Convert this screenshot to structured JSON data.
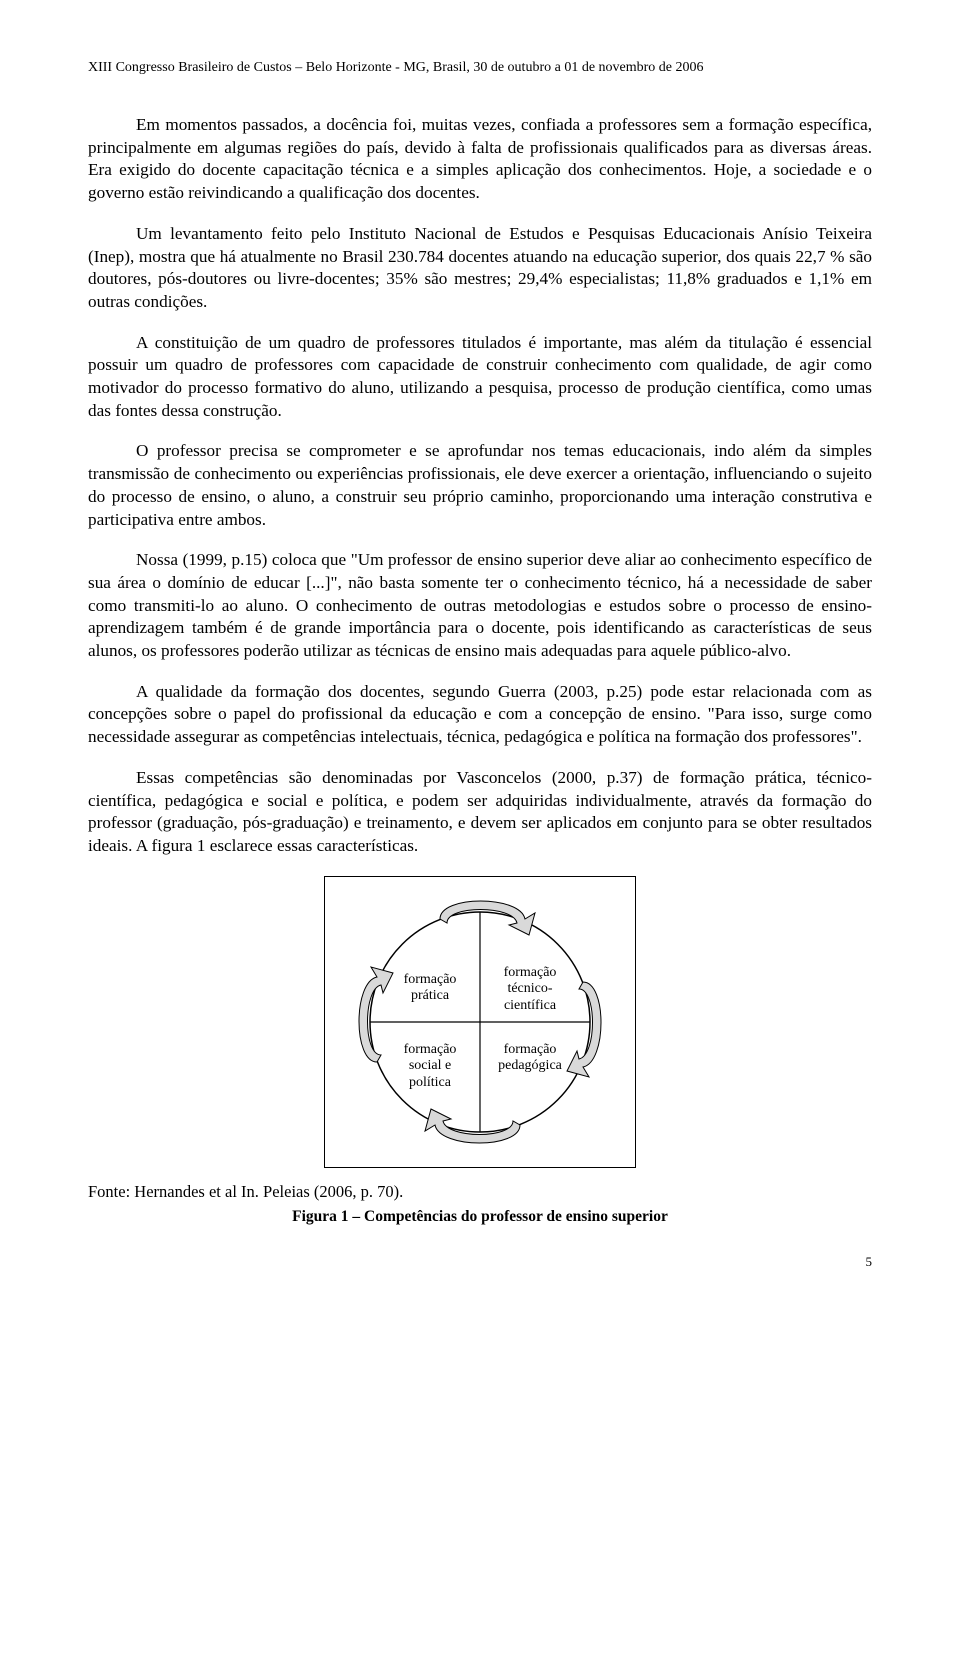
{
  "header": "XIII Congresso Brasileiro de Custos – Belo Horizonte - MG, Brasil, 30 de outubro a 01 de novembro de 2006",
  "paragraphs": {
    "p1": "Em momentos passados, a docência foi, muitas vezes, confiada a professores sem a formação específica, principalmente em algumas regiões do país, devido à falta de profissionais qualificados para as diversas áreas. Era exigido do docente capacitação técnica e a simples aplicação dos conhecimentos. Hoje, a sociedade e o governo estão reivindicando a qualificação dos docentes.",
    "p2": "Um levantamento feito pelo Instituto Nacional de Estudos e Pesquisas Educacionais Anísio Teixeira (Inep), mostra que há atualmente no Brasil 230.784 docentes atuando na educação superior, dos quais 22,7 % são doutores, pós-doutores ou livre-docentes; 35% são mestres; 29,4% especialistas; 11,8% graduados e 1,1% em outras condições.",
    "p3": "A constituição de um quadro de professores titulados é importante, mas além da titulação é essencial possuir um quadro de professores com capacidade de construir conhecimento com qualidade, de agir como motivador do processo formativo do aluno, utilizando a pesquisa, processo de produção científica, como umas das fontes dessa construção.",
    "p4": "O professor precisa se comprometer e se aprofundar nos temas educacionais, indo além da simples transmissão de conhecimento ou experiências profissionais, ele deve exercer a orientação, influenciando o sujeito do processo de ensino, o aluno, a construir seu próprio caminho, proporcionando uma interação construtiva e participativa entre ambos.",
    "p5": "Nossa (1999, p.15) coloca que \"Um professor de ensino superior deve aliar ao conhecimento específico de sua área o domínio de educar [...]\", não basta somente ter o conhecimento técnico, há a necessidade de saber como transmiti-lo ao aluno. O conhecimento de outras metodologias e estudos sobre o processo de ensino-aprendizagem também é de grande importância para o docente, pois identificando as características de seus alunos, os professores poderão utilizar as técnicas de ensino mais adequadas para aquele público-alvo.",
    "p6": "A qualidade da formação dos docentes, segundo Guerra (2003, p.25) pode estar relacionada com as concepções sobre o papel do profissional da educação e com a concepção de ensino. \"Para isso, surge como necessidade assegurar as competências intelectuais, técnica, pedagógica e política na formação dos professores\".",
    "p7": "Essas competências são denominadas por Vasconcelos (2000, p.37) de formação prática, técnico-científica, pedagógica e social e política, e podem ser adquiridas individualmente, através da formação do professor (graduação, pós-graduação) e treinamento, e devem ser aplicados em conjunto para se obter resultados ideais.  A figura 1 esclarece essas características."
  },
  "figure": {
    "labels": {
      "q1": "formação\nprática",
      "q2": "formação\ntécnico-\ncientífica",
      "q3": "formação\nsocial e\npolítica",
      "q4": "formação\npedagógica"
    },
    "colors": {
      "arrow_fill": "#d9d9d9",
      "arrow_stroke": "#000000",
      "circle_stroke": "#000000",
      "cross_stroke": "#000000",
      "box_stroke": "#000000",
      "background": "#ffffff"
    }
  },
  "source": "Fonte: Hernandes et al In. Peleias (2006, p. 70).",
  "caption": "Figura 1 – Competências do professor de ensino superior",
  "page_number": "5"
}
